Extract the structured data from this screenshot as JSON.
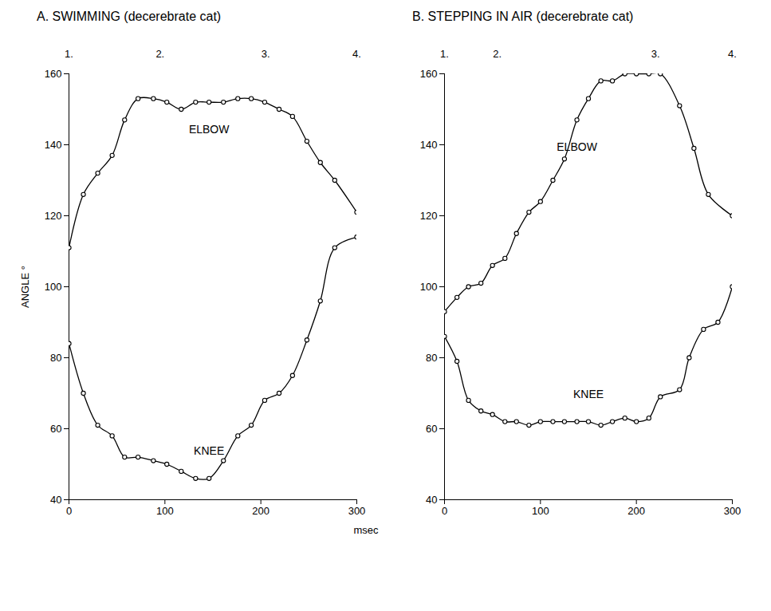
{
  "chart_data": [
    {
      "type": "line",
      "title": "A. SWIMMING (decerebrate cat)",
      "ylabel": "ANGLE °",
      "xlabel": "msec",
      "xlim": [
        0,
        300
      ],
      "xticks": [
        0,
        100,
        200,
        300
      ],
      "ylim": [
        40,
        160
      ],
      "yticks": [
        40,
        60,
        80,
        100,
        120,
        140,
        160
      ],
      "annotations": [
        {
          "value": 0,
          "label": "1."
        },
        {
          "value": 95,
          "label": "2."
        },
        {
          "value": 205,
          "label": "3."
        },
        {
          "value": 300,
          "label": "4."
        }
      ],
      "series": [
        {
          "name": "ELBOW",
          "color": "#000000",
          "marker": "circle",
          "line_style": "solid",
          "x": [
            0,
            15,
            30,
            45,
            58,
            72,
            88,
            102,
            117,
            132,
            146,
            161,
            176,
            190,
            204,
            219,
            233,
            248,
            262,
            277,
            300
          ],
          "values": [
            111,
            126,
            132,
            137,
            147,
            153,
            153,
            152,
            150,
            152,
            152,
            152,
            153,
            153,
            152,
            150,
            148,
            141,
            135,
            130,
            121
          ]
        },
        {
          "name": "KNEE",
          "color": "#000000",
          "marker": "circle",
          "line_style": "solid",
          "x": [
            0,
            15,
            30,
            45,
            58,
            72,
            88,
            102,
            117,
            132,
            146,
            161,
            176,
            190,
            204,
            219,
            233,
            248,
            262,
            277,
            300
          ],
          "values": [
            84,
            70,
            61,
            58,
            52,
            52,
            51,
            50,
            48,
            46,
            46,
            51,
            58,
            61,
            68,
            70,
            75,
            85,
            96,
            111,
            114
          ]
        }
      ]
    },
    {
      "type": "line",
      "title": "B. STEPPING IN AIR (decerebrate cat)",
      "xlim": [
        0,
        300
      ],
      "xticks": [
        0,
        100,
        200,
        300
      ],
      "ylim": [
        40,
        160
      ],
      "yticks": [
        40,
        60,
        80,
        100,
        120,
        140,
        160
      ],
      "annotations": [
        {
          "value": 0,
          "label": "1."
        },
        {
          "value": 55,
          "label": "2."
        },
        {
          "value": 220,
          "label": "3."
        },
        {
          "value": 300,
          "label": "4."
        }
      ],
      "series": [
        {
          "name": "ELBOW",
          "color": "#000000",
          "marker": "circle",
          "line_style": "solid",
          "x": [
            0,
            13,
            25,
            38,
            50,
            63,
            75,
            88,
            100,
            113,
            125,
            138,
            150,
            163,
            175,
            188,
            200,
            213,
            225,
            245,
            260,
            275,
            300
          ],
          "values": [
            93,
            97,
            100,
            101,
            106,
            108,
            115,
            121,
            124,
            130,
            136,
            147,
            153,
            158,
            158,
            160,
            160,
            160,
            160,
            151,
            139,
            126,
            120
          ]
        },
        {
          "name": "KNEE",
          "color": "#000000",
          "marker": "circle",
          "line_style": "solid",
          "x": [
            0,
            13,
            25,
            38,
            50,
            63,
            75,
            88,
            100,
            113,
            125,
            138,
            150,
            163,
            175,
            188,
            200,
            213,
            225,
            245,
            255,
            270,
            285,
            300
          ],
          "values": [
            86,
            79,
            68,
            65,
            64,
            62,
            62,
            61,
            62,
            62,
            62,
            62,
            62,
            61,
            62,
            63,
            62,
            63,
            69,
            71,
            80,
            88,
            90,
            100
          ]
        }
      ]
    }
  ]
}
